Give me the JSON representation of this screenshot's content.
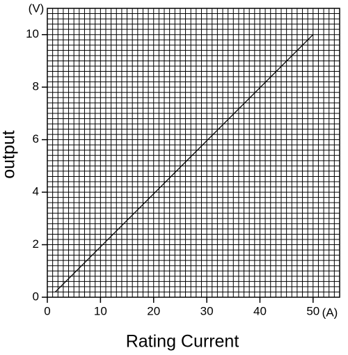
{
  "chart_data": {
    "type": "line",
    "x_label": "Rating Current",
    "y_label": "output",
    "x_unit": "(A)",
    "y_unit": "(V)",
    "x": [
      1.5,
      50
    ],
    "series": [
      {
        "color": "#000000",
        "values": [
          0.2,
          10
        ]
      }
    ],
    "xlim": [
      0,
      55
    ],
    "ylim": [
      0,
      11
    ],
    "xticks": [
      0,
      10,
      20,
      30,
      40,
      50
    ],
    "yticks": [
      0,
      2,
      4,
      6,
      8,
      10
    ],
    "grid": true,
    "x_grid_step": 1,
    "y_grid_step": 0.2
  }
}
